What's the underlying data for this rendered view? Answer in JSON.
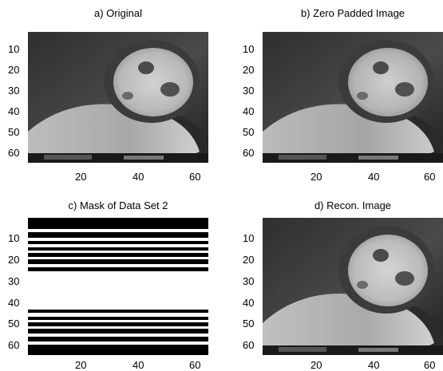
{
  "panels": [
    {
      "key": "a",
      "title": "a) Original",
      "image_type": "grayscale MRI cardiac short-axis slice"
    },
    {
      "key": "b",
      "title": "b) Zero Padded Image",
      "image_type": "grayscale MRI cardiac short-axis slice"
    },
    {
      "key": "c",
      "title": "c) Mask of Data Set 2",
      "image_type": "binary row mask"
    },
    {
      "key": "d",
      "title": "d) Recon. Image",
      "image_type": "grayscale MRI cardiac short-axis slice"
    }
  ],
  "axes": {
    "y_ticks": [
      "10",
      "20",
      "30",
      "40",
      "50",
      "60"
    ],
    "x_ticks": [
      "20",
      "40",
      "60"
    ]
  },
  "mask_rows": {
    "description": "white horizontal bands on black background in mask image",
    "color_on": "#ffffff",
    "color_off": "#000000"
  },
  "colors": {
    "background": "#ffffff",
    "image_dark": "#1e1e1e",
    "image_mid": "#6a6a6a",
    "image_bright": "#c9c9c9"
  }
}
